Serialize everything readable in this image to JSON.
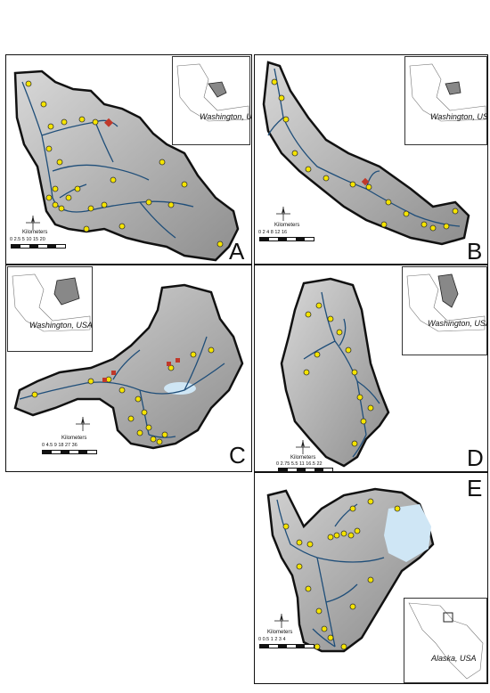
{
  "panels": {
    "A": {
      "letter": "A",
      "inset_label": "Washington, USA",
      "scale_title": "Kilometers",
      "scale_ticks": "0 2.5 5   10   15   20",
      "north": "N"
    },
    "B": {
      "letter": "B",
      "inset_label": "Washington, USA",
      "scale_title": "Kilometers",
      "scale_ticks": "0  2  4    8    12    16",
      "north": "N"
    },
    "C": {
      "letter": "C",
      "inset_label": "Washington, USA",
      "scale_title": "Kilometers",
      "scale_ticks": "0 4.5 9    18    27    36",
      "north": "N"
    },
    "D": {
      "letter": "D",
      "inset_label": "Washington, USA",
      "scale_title": "Kilometers",
      "scale_ticks": "0 2.75 5.5   11   16.5   22",
      "north": "N"
    },
    "E": {
      "letter": "E",
      "inset_label": "Alaska, USA",
      "scale_title": "Kilometers",
      "scale_ticks": "0 0.5 1    2    3    4",
      "north": "N"
    }
  },
  "colors": {
    "stream": "#1f4e79",
    "site_fill": "#f5e400",
    "site_stroke": "#333333",
    "barrier": "#c0392b",
    "terrain": "#b8b8b8",
    "terrain_dark": "#7a7a7a",
    "glacier": "#cfe6f5"
  }
}
